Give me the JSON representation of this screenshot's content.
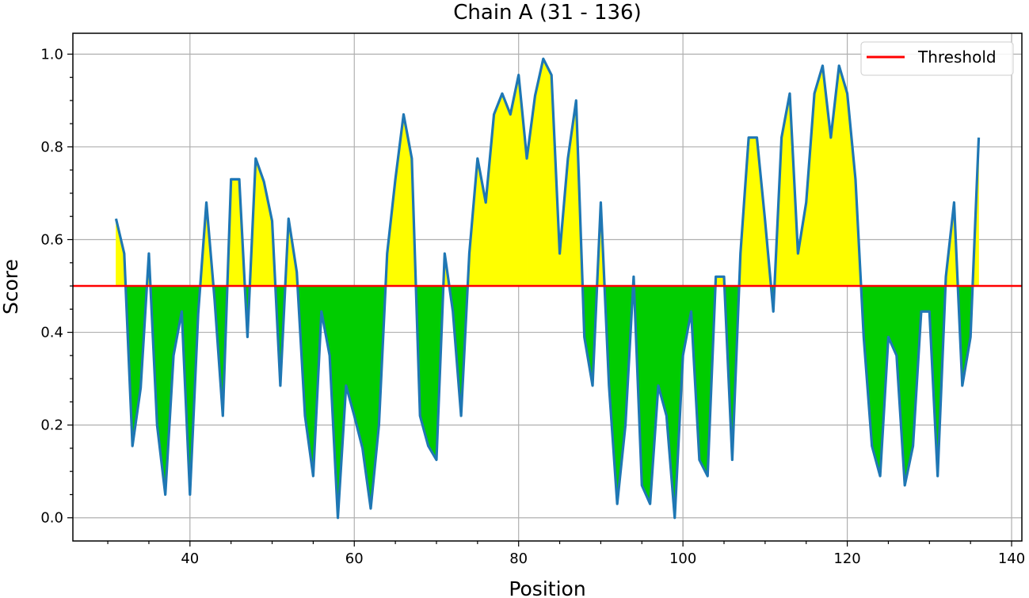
{
  "chart_data": {
    "type": "area",
    "title": "Chain A (31 - 136)",
    "xlabel": "Position",
    "ylabel": "Score",
    "xlim": [
      25.75,
      141.25
    ],
    "ylim": [
      -0.05,
      1.045
    ],
    "xticks": [
      40,
      60,
      80,
      100,
      120,
      140
    ],
    "yticks": [
      0.0,
      0.2,
      0.4,
      0.6,
      0.8,
      1.0
    ],
    "ytick_labels": [
      "0.0",
      "0.2",
      "0.4",
      "0.6",
      "0.8",
      "1.0"
    ],
    "grid": true,
    "legend": {
      "position": "top-right",
      "entries": [
        "Threshold"
      ]
    },
    "threshold": 0.5,
    "colors": {
      "line": "#1f77b4",
      "above": "#ffff00",
      "below": "#00cc00",
      "threshold": "#ff0000"
    },
    "x": [
      31,
      32,
      33,
      34,
      35,
      36,
      37,
      38,
      39,
      40,
      41,
      42,
      43,
      44,
      45,
      46,
      47,
      48,
      49,
      50,
      51,
      52,
      53,
      54,
      55,
      56,
      57,
      58,
      59,
      60,
      61,
      62,
      63,
      64,
      65,
      66,
      67,
      68,
      69,
      70,
      71,
      72,
      73,
      74,
      75,
      76,
      77,
      78,
      79,
      80,
      81,
      82,
      83,
      84,
      85,
      86,
      87,
      88,
      89,
      90,
      91,
      92,
      93,
      94,
      95,
      96,
      97,
      98,
      99,
      100,
      101,
      102,
      103,
      104,
      105,
      106,
      107,
      108,
      109,
      110,
      111,
      112,
      113,
      114,
      115,
      116,
      117,
      118,
      119,
      120,
      121,
      122,
      123,
      124,
      125,
      126,
      127,
      128,
      129,
      130,
      131,
      132,
      133,
      134,
      135,
      136
    ],
    "y": [
      0.645,
      0.57,
      0.155,
      0.28,
      0.57,
      0.2,
      0.05,
      0.35,
      0.445,
      0.05,
      0.44,
      0.68,
      0.47,
      0.22,
      0.73,
      0.73,
      0.39,
      0.775,
      0.725,
      0.64,
      0.285,
      0.645,
      0.53,
      0.22,
      0.09,
      0.445,
      0.35,
      0.0,
      0.285,
      0.22,
      0.15,
      0.02,
      0.2,
      0.57,
      0.73,
      0.87,
      0.775,
      0.22,
      0.155,
      0.125,
      0.57,
      0.445,
      0.22,
      0.57,
      0.775,
      0.68,
      0.87,
      0.915,
      0.87,
      0.955,
      0.775,
      0.91,
      0.99,
      0.955,
      0.57,
      0.775,
      0.9,
      0.39,
      0.285,
      0.68,
      0.285,
      0.03,
      0.2,
      0.52,
      0.07,
      0.03,
      0.285,
      0.22,
      0.0,
      0.35,
      0.445,
      0.125,
      0.09,
      0.52,
      0.52,
      0.125,
      0.57,
      0.82,
      0.82,
      0.64,
      0.445,
      0.82,
      0.915,
      0.57,
      0.68,
      0.915,
      0.975,
      0.82,
      0.975,
      0.915,
      0.73,
      0.39,
      0.155,
      0.09,
      0.39,
      0.35,
      0.07,
      0.155,
      0.445,
      0.445,
      0.09,
      0.52,
      0.68,
      0.285,
      0.39,
      0.82
    ]
  }
}
